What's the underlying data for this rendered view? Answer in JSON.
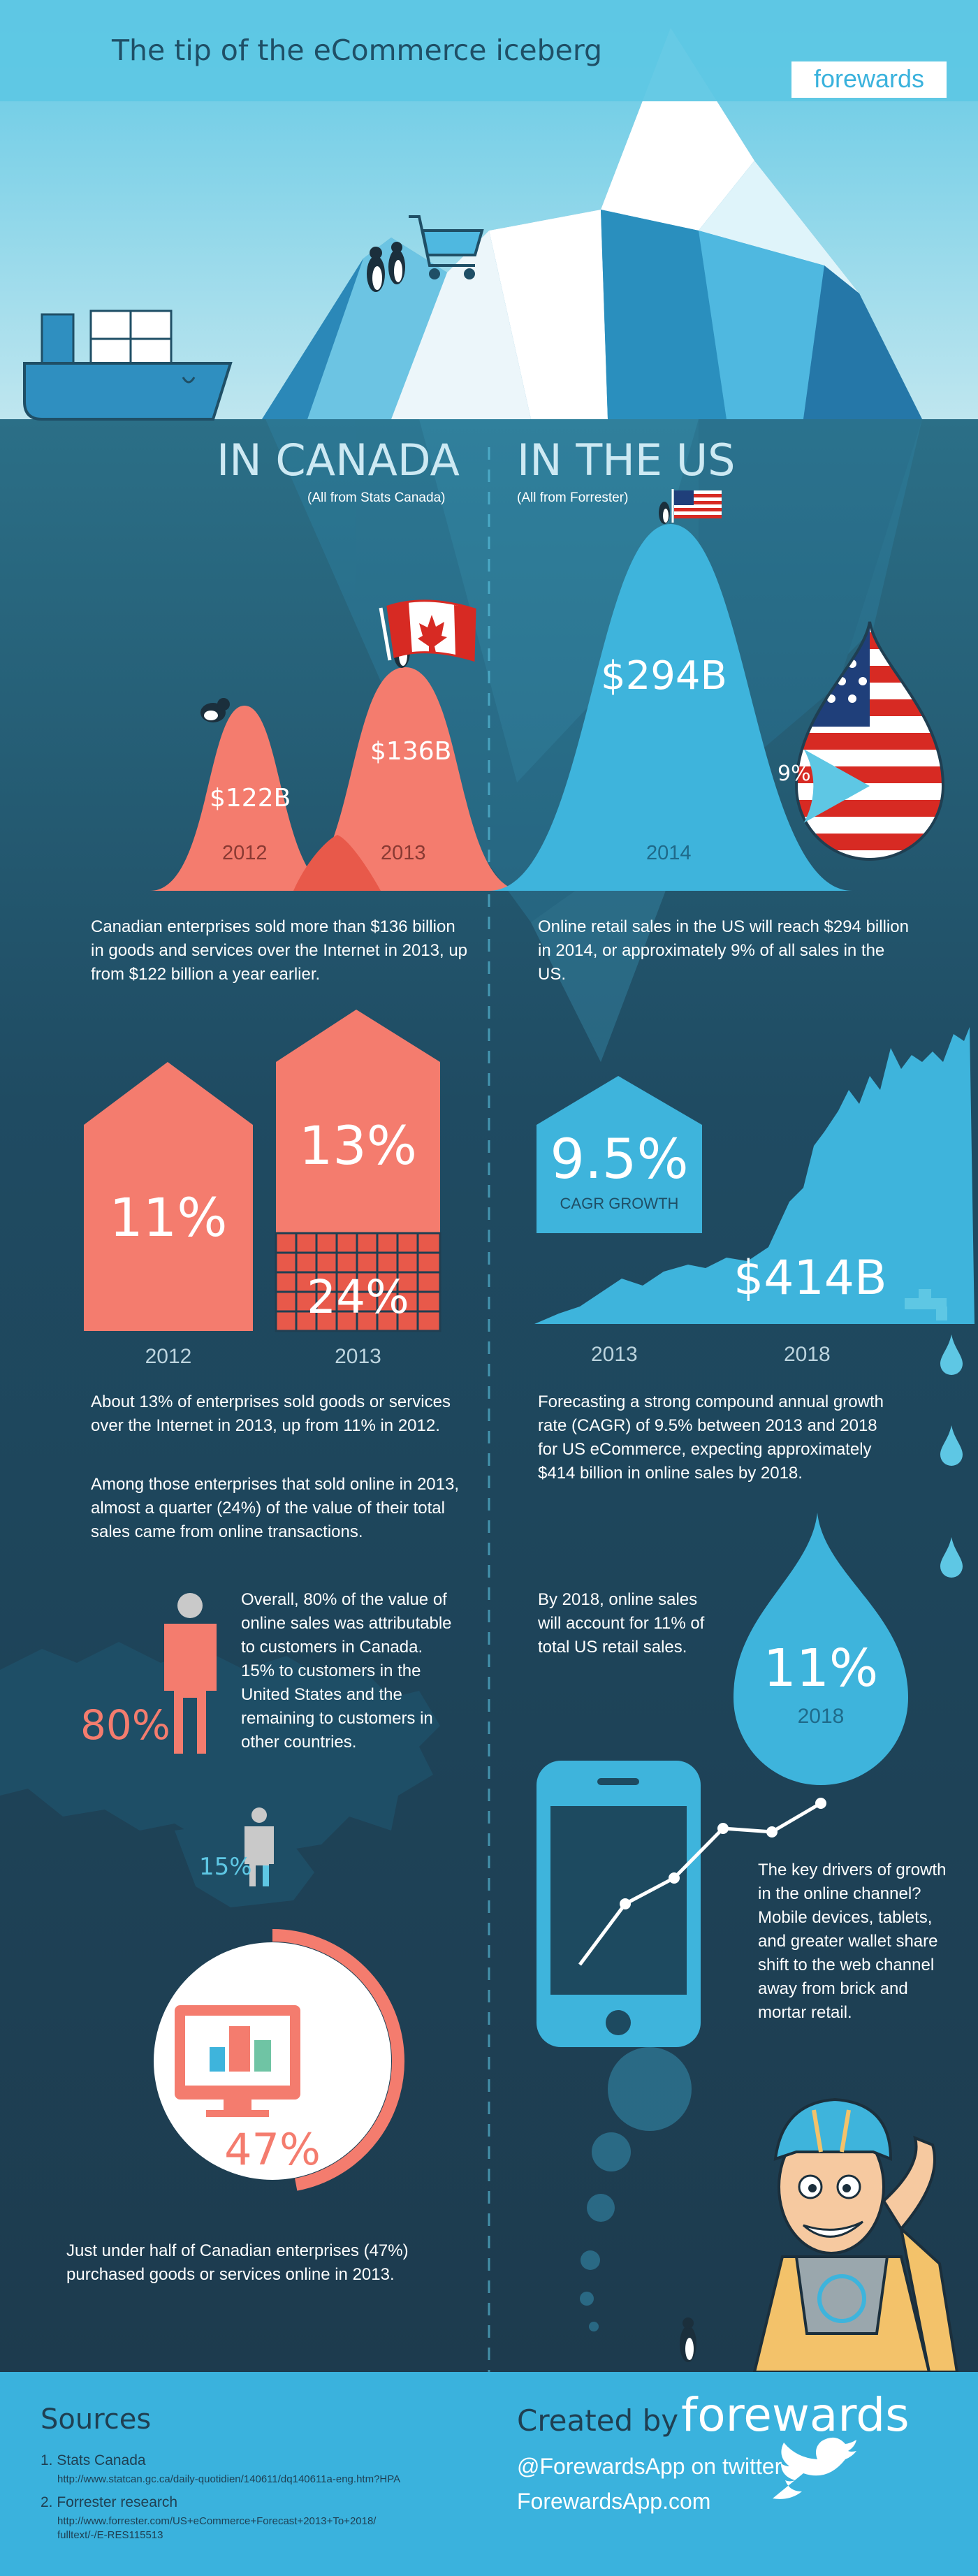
{
  "header": {
    "title": "The tip of the eCommerce iceberg",
    "brand": "forewards"
  },
  "canada": {
    "heading": "IN CANADA",
    "source_note": "(All from Stats Canada)",
    "value_2012": "$122B",
    "year_2012": "2012",
    "value_2013": "$136B",
    "year_2013": "2013",
    "sales_text": "Canadian enterprises sold more than $136 billion in goods and services over the Internet in 2013, up from $122 billion a year earlier.",
    "pct_2012": "11%",
    "pct_2013": "13%",
    "pct_share": "24%",
    "bar_year_2012": "2012",
    "bar_year_2013": "2013",
    "enterprises_text": "About 13% of enterprises sold goods or services over the Internet in 2013, up from 11% in 2012.",
    "share_text": "Among those enterprises that sold online in 2013, almost a quarter (24%) of the value of their total sales came from online transactions.",
    "customers_text": "Overall, 80% of the value of online sales was attributable to customers in Canada. 15% to customers in the United States and the remaining to customers in other countries.",
    "pct_domestic": "80%",
    "pct_us_customers": "15%",
    "purchased_pct": "47%",
    "purchased_fraction": 0.47,
    "purchased_text": "Just under half of Canadian enterprises (47%) purchased goods or services online in 2013."
  },
  "us": {
    "heading": "IN THE US",
    "source_note": "(All from Forrester)",
    "value_2014": "$294B",
    "share_pct": "9%",
    "year_2014": "2014",
    "sales_text": "Online retail sales in the US will reach $294 billion in 2014, or approximately 9% of all sales in the US.",
    "cagr_value": "9.5%",
    "cagr_label": "CAGR GROWTH",
    "value_2018": "$414B",
    "year_start": "2013",
    "year_end": "2018",
    "cagr_text": "Forecasting a strong compound annual growth rate (CAGR) of 9.5% between 2013 and 2018 for US eCommerce, expecting approximately $414 billion in online sales by 2018.",
    "retail_text": "By 2018, online sales will account for 11% of total US retail sales.",
    "drop_pct": "11%",
    "drop_year": "2018",
    "drivers_text": "The key drivers of growth in the online channel? Mobile devices, tablets, and greater wallet share shift to the web channel away from brick and mortar retail."
  },
  "footer": {
    "sources_title": "Sources",
    "source_1_title": "1. Stats Canada",
    "source_1_url": "http://www.statcan.gc.ca/daily-quotidien/140611/dq140611a-eng.htm?HPA",
    "source_2_title": "2. Forrester research",
    "source_2_url_line1": "http://www.forrester.com/US+eCommerce+Forecast+2013+To+2018/",
    "source_2_url_line2": "fulltext/-/E-RES115513",
    "created_by": "Created by",
    "brand": "forewards",
    "twitter": "@ForewardsApp on twitter",
    "website": "ForewardsApp.com"
  },
  "colors": {
    "coral": "#f47c6e",
    "coral_dark": "#e8594a",
    "us_blue": "#3eb4dc",
    "sky": "#5ec7e4",
    "navy": "#1f3f52",
    "footer": "#3ab2dd"
  }
}
